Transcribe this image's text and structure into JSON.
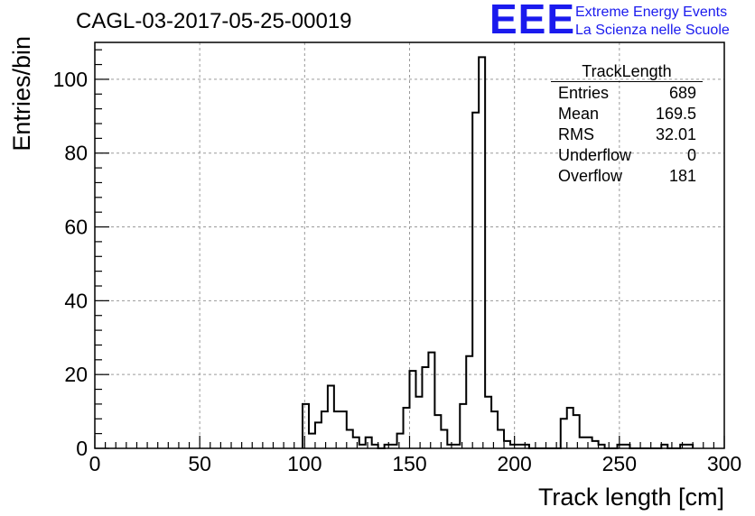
{
  "header": {
    "run_title": "CAGL-03-2017-05-25-00019"
  },
  "logo": {
    "mark": "EEE",
    "line1": "Extreme Energy Events",
    "line2": "La Scienza nelle Scuole",
    "color": "#1a1aee"
  },
  "stats_box": {
    "title": "TrackLength",
    "rows": [
      {
        "key": "Entries",
        "value": "689"
      },
      {
        "key": "Mean",
        "value": "169.5"
      },
      {
        "key": "RMS",
        "value": "32.01"
      },
      {
        "key": "Underflow",
        "value": "0"
      },
      {
        "key": "Overflow",
        "value": "181"
      }
    ]
  },
  "chart_data": {
    "type": "histogram",
    "xlabel": "Track length [cm]",
    "ylabel": "Entries/bin",
    "xlim": [
      0,
      300
    ],
    "ylim": [
      0,
      110
    ],
    "bin_width": 3,
    "x_ticks": [
      0,
      50,
      100,
      150,
      200,
      250,
      300
    ],
    "y_ticks": [
      0,
      20,
      40,
      60,
      80,
      100
    ],
    "grid": true,
    "line_color": "#000000",
    "bins": [
      {
        "x": 99,
        "y": 12
      },
      {
        "x": 102,
        "y": 4
      },
      {
        "x": 105,
        "y": 7
      },
      {
        "x": 108,
        "y": 10
      },
      {
        "x": 111,
        "y": 17
      },
      {
        "x": 114,
        "y": 10
      },
      {
        "x": 117,
        "y": 10
      },
      {
        "x": 120,
        "y": 5
      },
      {
        "x": 123,
        "y": 3
      },
      {
        "x": 126,
        "y": 1
      },
      {
        "x": 129,
        "y": 3
      },
      {
        "x": 132,
        "y": 1
      },
      {
        "x": 135,
        "y": 0
      },
      {
        "x": 138,
        "y": 1
      },
      {
        "x": 141,
        "y": 1
      },
      {
        "x": 144,
        "y": 4
      },
      {
        "x": 147,
        "y": 11
      },
      {
        "x": 150,
        "y": 21
      },
      {
        "x": 153,
        "y": 14
      },
      {
        "x": 156,
        "y": 22
      },
      {
        "x": 159,
        "y": 26
      },
      {
        "x": 162,
        "y": 9
      },
      {
        "x": 165,
        "y": 5
      },
      {
        "x": 168,
        "y": 1
      },
      {
        "x": 171,
        "y": 1
      },
      {
        "x": 174,
        "y": 12
      },
      {
        "x": 177,
        "y": 25
      },
      {
        "x": 180,
        "y": 91
      },
      {
        "x": 183,
        "y": 106
      },
      {
        "x": 186,
        "y": 14
      },
      {
        "x": 189,
        "y": 10
      },
      {
        "x": 192,
        "y": 5
      },
      {
        "x": 195,
        "y": 2
      },
      {
        "x": 198,
        "y": 1
      },
      {
        "x": 201,
        "y": 1
      },
      {
        "x": 204,
        "y": 1
      },
      {
        "x": 207,
        "y": 0
      },
      {
        "x": 210,
        "y": 0
      },
      {
        "x": 213,
        "y": 0
      },
      {
        "x": 216,
        "y": 0
      },
      {
        "x": 219,
        "y": 0
      },
      {
        "x": 222,
        "y": 8
      },
      {
        "x": 225,
        "y": 11
      },
      {
        "x": 228,
        "y": 9
      },
      {
        "x": 231,
        "y": 3
      },
      {
        "x": 234,
        "y": 3
      },
      {
        "x": 237,
        "y": 2
      },
      {
        "x": 240,
        "y": 1
      },
      {
        "x": 243,
        "y": 0
      },
      {
        "x": 246,
        "y": 0
      },
      {
        "x": 249,
        "y": 1
      },
      {
        "x": 252,
        "y": 1
      },
      {
        "x": 255,
        "y": 0
      },
      {
        "x": 258,
        "y": 0
      },
      {
        "x": 261,
        "y": 0
      },
      {
        "x": 264,
        "y": 0
      },
      {
        "x": 267,
        "y": 0
      },
      {
        "x": 270,
        "y": 1
      },
      {
        "x": 273,
        "y": 0
      },
      {
        "x": 276,
        "y": 0
      },
      {
        "x": 279,
        "y": 1
      },
      {
        "x": 282,
        "y": 1
      }
    ]
  }
}
